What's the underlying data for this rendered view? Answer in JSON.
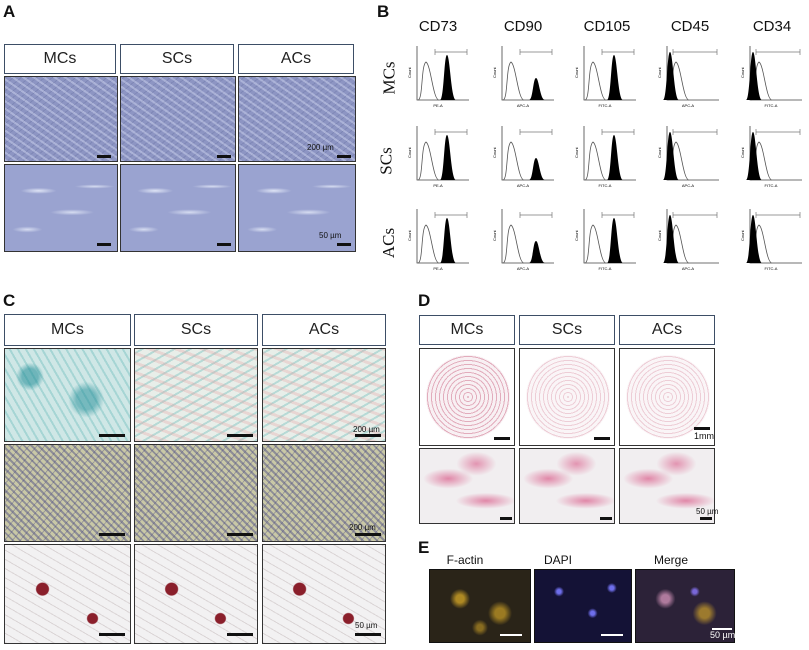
{
  "panels": {
    "a": "A",
    "b": "B",
    "c": "C",
    "d": "D",
    "e": "E"
  },
  "panel_a": {
    "headers": [
      "MCs",
      "SCs",
      "ACs"
    ],
    "scale_low": "200 µm",
    "scale_high": "50 µm"
  },
  "panel_b": {
    "markers": [
      "CD73",
      "CD90",
      "CD105",
      "CD45",
      "CD34"
    ],
    "rows": [
      "MCs",
      "SCs",
      "ACs"
    ],
    "y_label": "Count",
    "x_labels": [
      "PE-A",
      "APC-A",
      "FITC-A",
      "APC-A",
      "FITC-A"
    ],
    "positive_markers": [
      true,
      true,
      true,
      false,
      false
    ]
  },
  "panel_c": {
    "headers": [
      "MCs",
      "SCs",
      "ACs"
    ],
    "scale_row1": "200 µm",
    "scale_row2": "200 µm",
    "scale_row3": "50 µm"
  },
  "panel_d": {
    "headers": [
      "MCs",
      "SCs",
      "ACs"
    ],
    "scale_low": "1mm",
    "scale_high": "50 µm"
  },
  "panel_e": {
    "channels": [
      "F-actin",
      "DAPI",
      "Merge"
    ],
    "scale": "50 µm"
  }
}
